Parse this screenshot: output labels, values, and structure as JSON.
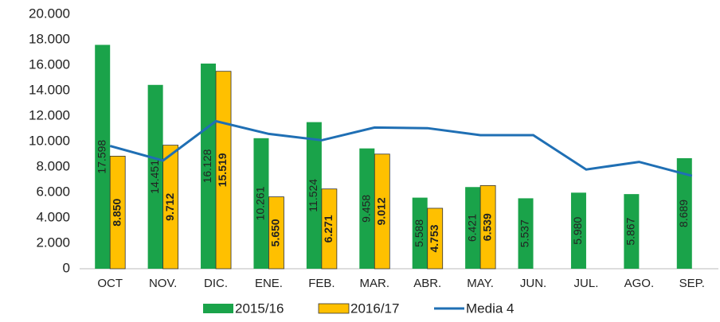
{
  "chart_data": {
    "type": "bar",
    "categories": [
      "OCT",
      "NOV.",
      "DIC.",
      "ENE.",
      "FEB.",
      "MAR.",
      "ABR.",
      "MAY.",
      "JUN.",
      "JUL.",
      "AGO.",
      "SEP."
    ],
    "series": [
      {
        "name": "2015/16",
        "color": "#1aa34a",
        "values": [
          17598,
          14451,
          16128,
          10261,
          11524,
          9458,
          5588,
          6421,
          5537,
          5980,
          5867,
          8689
        ],
        "value_labels": [
          "17.598",
          "14.451",
          "16.128",
          "10.261",
          "11.524",
          "9.458",
          "5.588",
          "6.421",
          "5.537",
          "5.980",
          "5.867",
          "8.689"
        ]
      },
      {
        "name": "2016/17",
        "color": "#ffc000",
        "values": [
          8850,
          9712,
          15519,
          5650,
          6271,
          9012,
          4753,
          6539,
          null,
          null,
          null,
          null
        ],
        "value_labels": [
          "8.850",
          "9.712",
          "15.519",
          "5.650",
          "6.271",
          "9.012",
          "4.753",
          "6.539",
          null,
          null,
          null,
          null
        ]
      },
      {
        "name": "Media 4",
        "type": "line",
        "color": "#1f6fb4",
        "values": [
          9650,
          8500,
          11600,
          10600,
          10100,
          11100,
          11050,
          10500,
          10500,
          7800,
          8400,
          7300
        ]
      }
    ],
    "ylim": [
      0,
      20000
    ],
    "yticks": [
      0,
      {
        "value": 2000,
        "label": "2.000"
      },
      {
        "value": 4000,
        "label": "4.000"
      },
      {
        "value": 6000,
        "label": "6.000"
      },
      {
        "value": 8000,
        "label": "8.000"
      },
      {
        "value": 10000,
        "label": "10.000"
      },
      {
        "value": 12000,
        "label": "12.000"
      },
      {
        "value": 14000,
        "label": "14.000"
      },
      {
        "value": 16000,
        "label": "16.000"
      },
      {
        "value": 18000,
        "label": "18.000"
      },
      {
        "value": 20000,
        "label": "20.000"
      }
    ],
    "grid": false,
    "legend": "bottom"
  }
}
